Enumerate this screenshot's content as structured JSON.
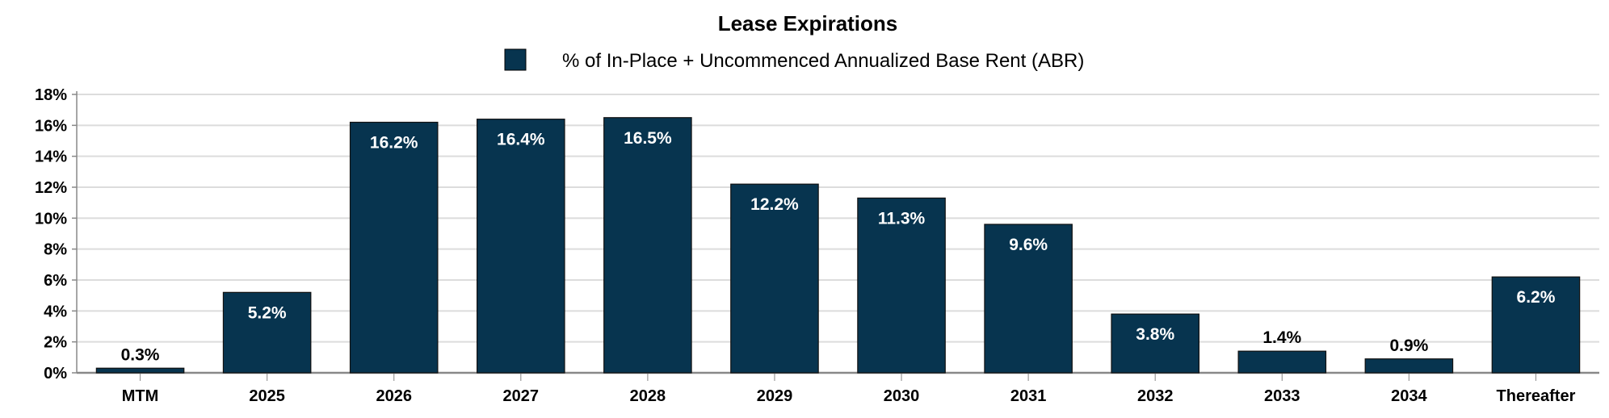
{
  "chart_data": {
    "type": "bar",
    "title": "Lease Expirations",
    "legend": "% of In-Place + Uncommenced Annualized Base Rent (ABR)",
    "legend_position": "top",
    "categories": [
      "MTM",
      "2025",
      "2026",
      "2027",
      "2028",
      "2029",
      "2030",
      "2031",
      "2032",
      "2033",
      "2034",
      "Thereafter"
    ],
    "values": [
      0.3,
      5.2,
      16.2,
      16.4,
      16.5,
      12.2,
      11.3,
      9.6,
      3.8,
      1.4,
      0.9,
      6.2
    ],
    "data_labels": [
      "0.3%",
      "5.2%",
      "16.2%",
      "16.4%",
      "16.5%",
      "12.2%",
      "11.3%",
      "9.6%",
      "3.8%",
      "1.4%",
      "0.9%",
      "6.2%"
    ],
    "yticks": [
      "0%",
      "2%",
      "4%",
      "6%",
      "8%",
      "10%",
      "12%",
      "14%",
      "16%",
      "18%"
    ],
    "ylim": [
      0,
      18
    ],
    "xlabel": "",
    "ylabel": "",
    "grid": true,
    "bar_color": "#07344f"
  }
}
